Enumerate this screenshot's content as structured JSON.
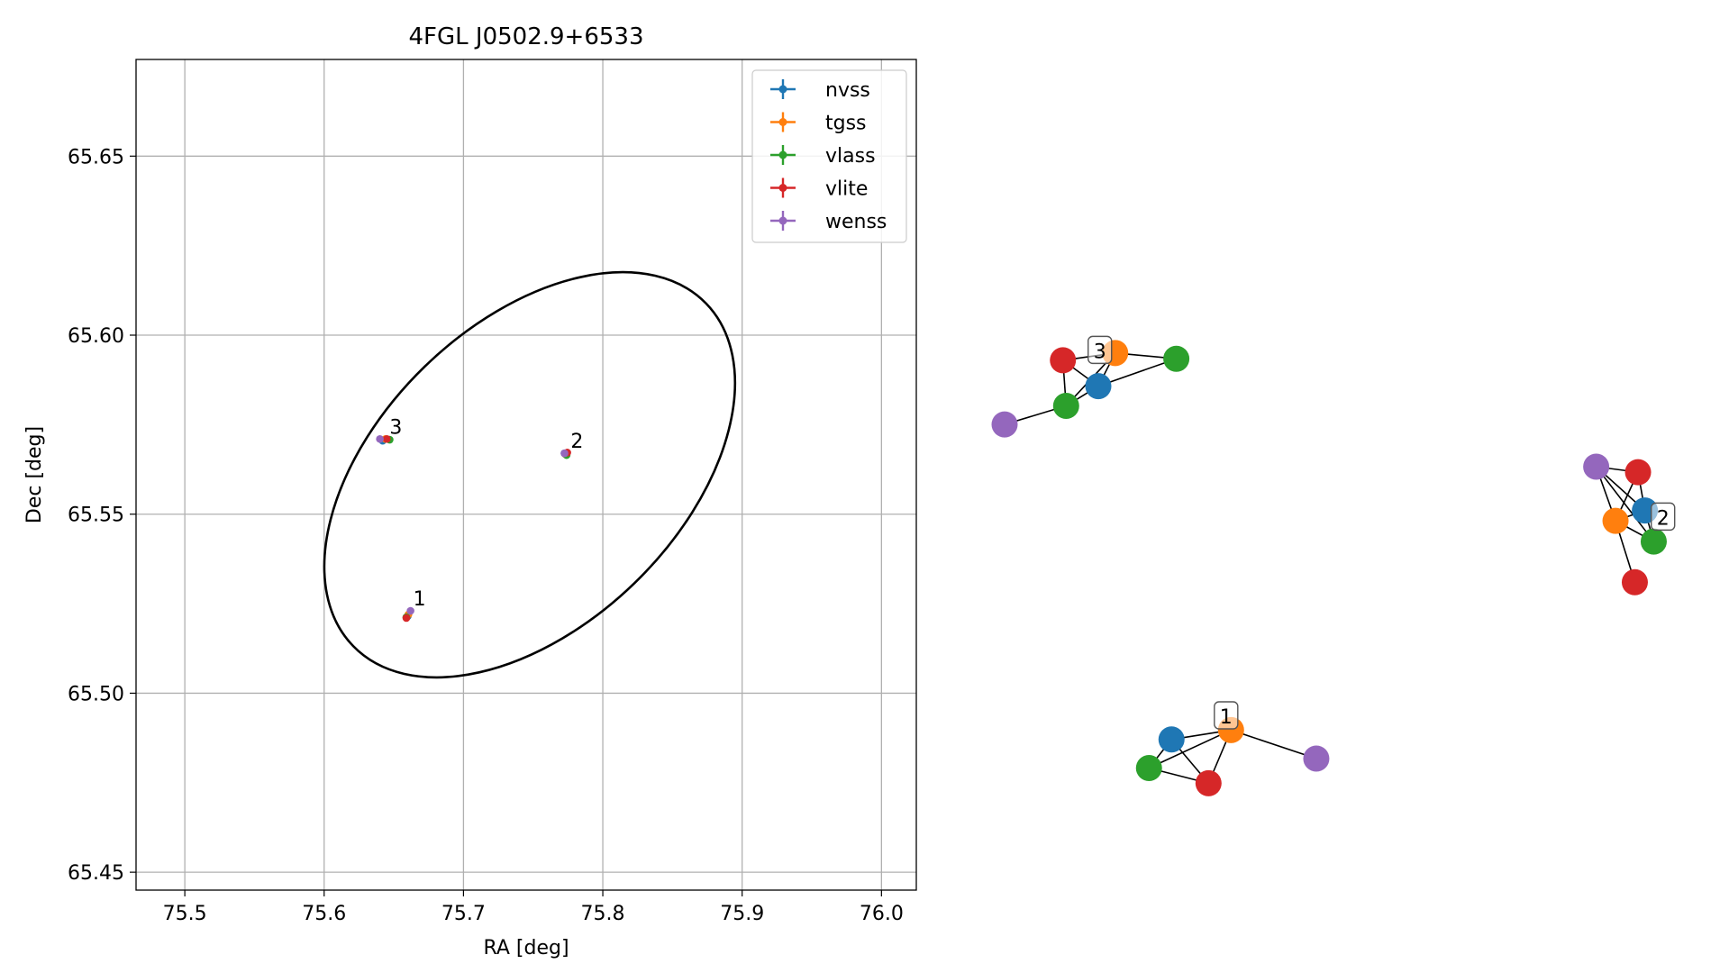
{
  "chart_data": [
    {
      "type": "scatter",
      "title": "4FGL J0502.9+6533",
      "xlabel": "RA [deg]",
      "ylabel": "Dec [deg]",
      "xlim": [
        75.465,
        76.025
      ],
      "ylim": [
        65.445,
        65.677
      ],
      "xticks": [
        75.5,
        75.6,
        75.7,
        75.8,
        75.9,
        76.0
      ],
      "xtick_labels": [
        "75.5",
        "75.6",
        "75.7",
        "75.8",
        "75.9",
        "76.0"
      ],
      "yticks": [
        65.45,
        65.5,
        65.55,
        65.6,
        65.65
      ],
      "ytick_labels": [
        "65.45",
        "65.50",
        "65.55",
        "65.60",
        "65.65"
      ],
      "grid": true,
      "legend_position": "top-right",
      "series": [
        {
          "name": "nvss",
          "color": "#1f77b4",
          "points": [
            [
              75.66,
              65.5215
            ],
            [
              75.7725,
              65.567
            ],
            [
              75.642,
              65.5705
            ]
          ]
        },
        {
          "name": "tgss",
          "color": "#ff7f0e",
          "points": [
            [
              75.6605,
              65.522
            ],
            [
              75.773,
              65.5668
            ],
            [
              75.644,
              65.571
            ]
          ]
        },
        {
          "name": "vlass",
          "color": "#2ca02c",
          "points": [
            [
              75.659,
              65.5212
            ],
            [
              75.774,
              65.5665
            ],
            [
              75.647,
              65.5708
            ]
          ]
        },
        {
          "name": "vlite",
          "color": "#d62728",
          "points": [
            [
              75.659,
              65.521
            ],
            [
              75.7745,
              65.5672
            ],
            [
              75.645,
              65.571
            ]
          ]
        },
        {
          "name": "wenss",
          "color": "#9467bd",
          "points": [
            [
              75.662,
              65.523
            ],
            [
              75.7725,
              65.567
            ],
            [
              75.64,
              65.571
            ]
          ]
        }
      ],
      "annotations": [
        {
          "text": "1",
          "x": 75.662,
          "y": 65.523
        },
        {
          "text": "2",
          "x": 75.775,
          "y": 65.567
        },
        {
          "text": "3",
          "x": 75.645,
          "y": 65.571
        }
      ],
      "ellipse": {
        "center": [
          75.7475,
          65.561
        ],
        "semi_major_ra": 0.1765,
        "semi_minor_ra": 0.1082,
        "angle_deg": 44.15
      }
    },
    {
      "type": "network",
      "node_colors": {
        "nvss": "#1f77b4",
        "tgss": "#ff7f0e",
        "vlass": "#2ca02c",
        "vlite": "#d62728",
        "wenss": "#9467bd"
      },
      "groups": [
        {
          "label": "3",
          "nodes": [
            {
              "survey": "vlite",
              "x": 0.0725,
              "y": 0.7705
            },
            {
              "survey": "tgss",
              "x": 0.1375,
              "y": 0.7825
            },
            {
              "survey": "vlass",
              "x": 0.2135,
              "y": 0.773
            },
            {
              "survey": "nvss",
              "x": 0.1165,
              "y": 0.728
            },
            {
              "survey": "vlass",
              "x": 0.0765,
              "y": 0.6955
            },
            {
              "survey": "wenss",
              "x": 0.0,
              "y": 0.665
            }
          ],
          "edges": [
            [
              0,
              1
            ],
            [
              1,
              2
            ],
            [
              0,
              3
            ],
            [
              0,
              4
            ],
            [
              1,
              3
            ],
            [
              2,
              3
            ],
            [
              3,
              4
            ],
            [
              1,
              4
            ],
            [
              4,
              5
            ]
          ]
        },
        {
          "label": "2",
          "nodes": [
            {
              "survey": "wenss",
              "x": 0.7355,
              "y": 0.5955
            },
            {
              "survey": "vlite",
              "x": 0.7875,
              "y": 0.5865
            },
            {
              "survey": "nvss",
              "x": 0.796,
              "y": 0.5235
            },
            {
              "survey": "tgss",
              "x": 0.7595,
              "y": 0.5065
            },
            {
              "survey": "vlass",
              "x": 0.807,
              "y": 0.4725
            },
            {
              "survey": "vlite",
              "x": 0.7835,
              "y": 0.4055
            }
          ],
          "edges": [
            [
              0,
              1
            ],
            [
              0,
              2
            ],
            [
              0,
              3
            ],
            [
              1,
              2
            ],
            [
              1,
              3
            ],
            [
              2,
              3
            ],
            [
              2,
              4
            ],
            [
              3,
              4
            ],
            [
              3,
              5
            ],
            [
              0,
              4
            ]
          ]
        },
        {
          "label": "1",
          "nodes": [
            {
              "survey": "nvss",
              "x": 0.2075,
              "y": 0.147
            },
            {
              "survey": "tgss",
              "x": 0.2815,
              "y": 0.1625
            },
            {
              "survey": "vlass",
              "x": 0.1795,
              "y": 0.1,
              "extra": false
            },
            {
              "survey": "vlite",
              "x": 0.2535,
              "y": 0.075
            },
            {
              "survey": "wenss",
              "x": 0.3875,
              "y": 0.1155
            }
          ],
          "edges": [
            [
              0,
              1
            ],
            [
              0,
              2
            ],
            [
              0,
              3
            ],
            [
              1,
              2
            ],
            [
              1,
              3
            ],
            [
              1,
              4
            ],
            [
              2,
              3
            ]
          ]
        }
      ]
    }
  ]
}
